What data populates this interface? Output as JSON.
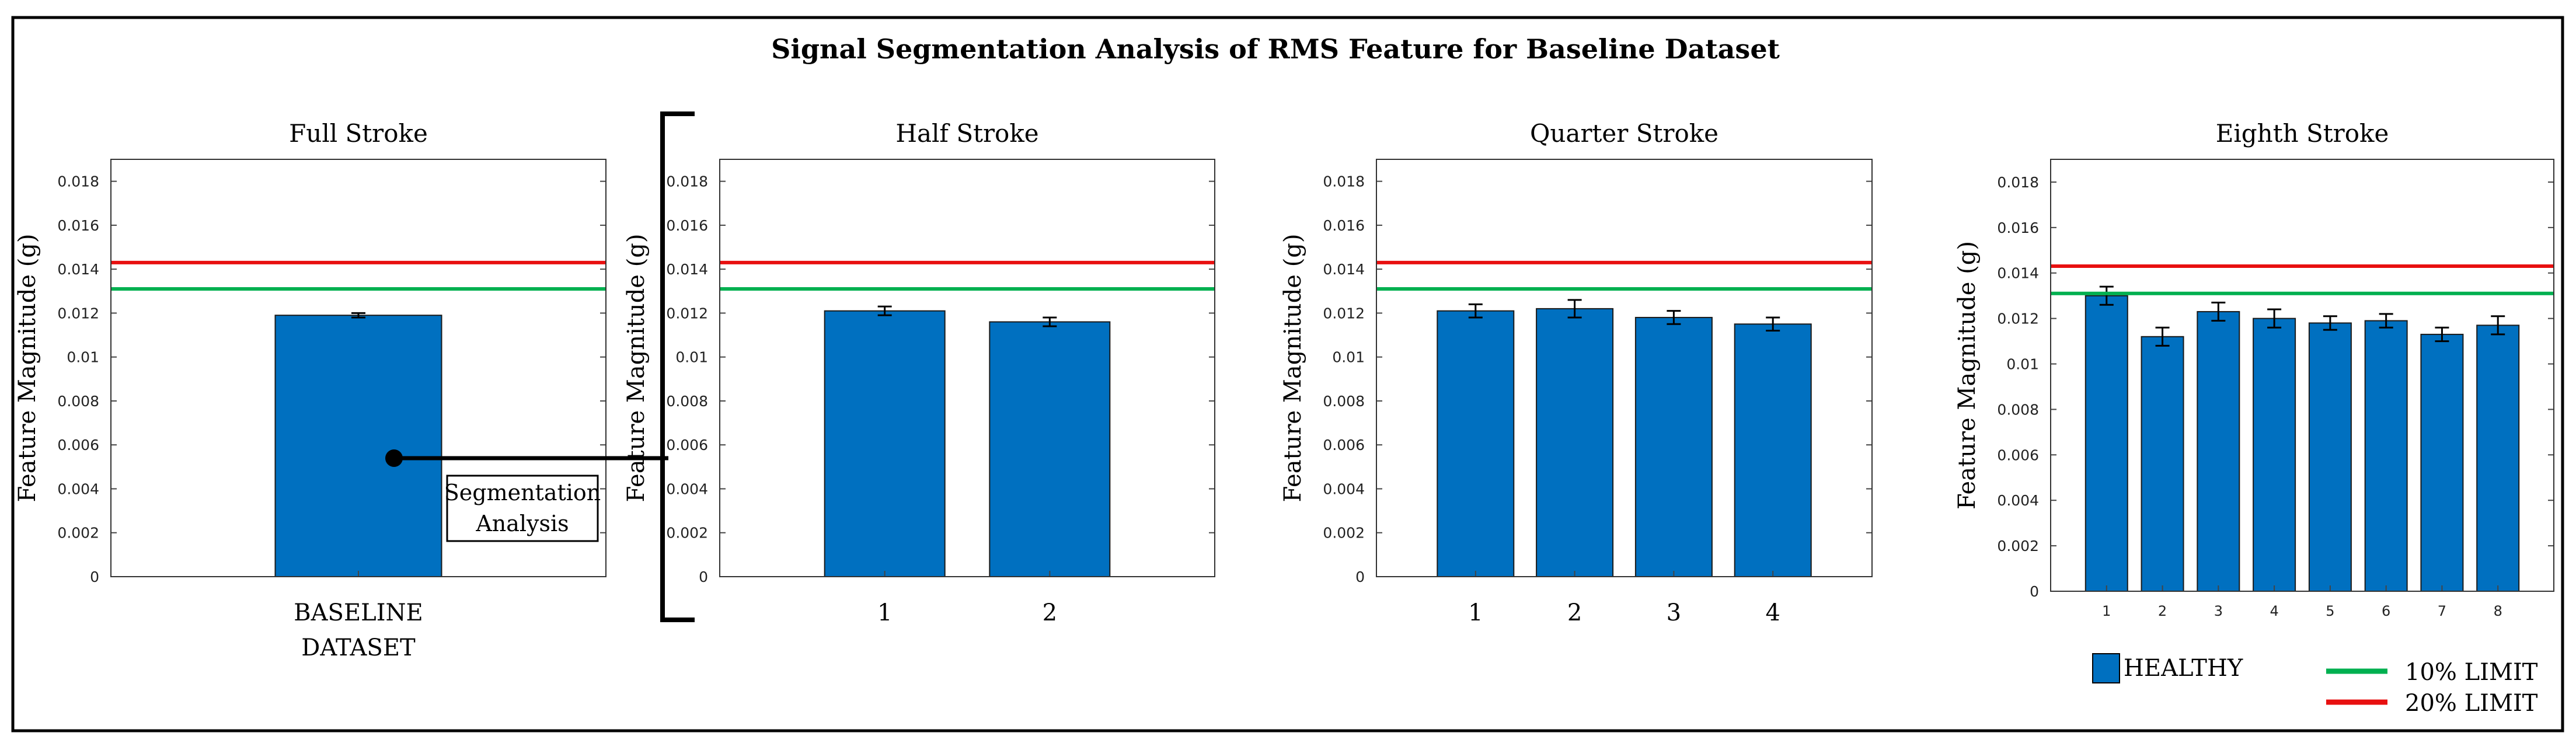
{
  "figure": {
    "title": "Signal Segmentation Analysis of RMS Feature for Baseline Dataset",
    "annotation": [
      "Segmentation",
      "Analysis"
    ],
    "colors": {
      "bar": "#0070c0",
      "limit10": "#00b050",
      "limit20": "#e81010",
      "frame": "#000000"
    }
  },
  "legend": {
    "healthy": "HEALTHY",
    "limit10": "10% LIMIT",
    "limit20": "20% LIMIT"
  },
  "chart_data": [
    {
      "type": "bar",
      "title": "Full Stroke",
      "ylabel": "Feature Magnitude (g)",
      "xlabel": "",
      "categories": [
        "BASELINE\nDATASET"
      ],
      "values": [
        0.0119
      ],
      "errors": [
        0.0001
      ],
      "ylim": [
        0,
        0.019
      ],
      "yticks": [
        "0",
        "0.002",
        "0.004",
        "0.006",
        "0.008",
        "0.01",
        "0.012",
        "0.014",
        "0.016",
        "0.018"
      ],
      "limit_10": 0.0131,
      "limit_20": 0.0143
    },
    {
      "type": "bar",
      "title": "Half Stroke",
      "ylabel": "Feature Magnitude (g)",
      "xlabel": "",
      "categories": [
        "1",
        "2"
      ],
      "values": [
        0.0121,
        0.0116
      ],
      "errors": [
        0.0002,
        0.0002
      ],
      "ylim": [
        0,
        0.019
      ],
      "yticks": [
        "0",
        "0.002",
        "0.004",
        "0.006",
        "0.008",
        "0.01",
        "0.012",
        "0.014",
        "0.016",
        "0.018"
      ],
      "limit_10": 0.0131,
      "limit_20": 0.0143
    },
    {
      "type": "bar",
      "title": "Quarter Stroke",
      "ylabel": "Feature Magnitude (g)",
      "xlabel": "",
      "categories": [
        "1",
        "2",
        "3",
        "4"
      ],
      "values": [
        0.0121,
        0.0122,
        0.0118,
        0.0115
      ],
      "errors": [
        0.0003,
        0.0004,
        0.0003,
        0.0003
      ],
      "ylim": [
        0,
        0.019
      ],
      "yticks": [
        "0",
        "0.002",
        "0.004",
        "0.006",
        "0.008",
        "0.01",
        "0.012",
        "0.014",
        "0.016",
        "0.018"
      ],
      "limit_10": 0.0131,
      "limit_20": 0.0143
    },
    {
      "type": "bar",
      "title": "Eighth Stroke",
      "ylabel": "Feature Magnitude (g)",
      "xlabel": "",
      "categories": [
        "1",
        "2",
        "3",
        "4",
        "5",
        "6",
        "7",
        "8"
      ],
      "values": [
        0.013,
        0.0112,
        0.0123,
        0.012,
        0.0118,
        0.0119,
        0.0113,
        0.0117
      ],
      "errors": [
        0.0004,
        0.0004,
        0.0004,
        0.0004,
        0.0003,
        0.0003,
        0.0003,
        0.0004
      ],
      "ylim": [
        0,
        0.019
      ],
      "yticks": [
        "0",
        "0.002",
        "0.004",
        "0.006",
        "0.008",
        "0.01",
        "0.012",
        "0.014",
        "0.016",
        "0.018"
      ],
      "limit_10": 0.0131,
      "limit_20": 0.0143
    }
  ]
}
